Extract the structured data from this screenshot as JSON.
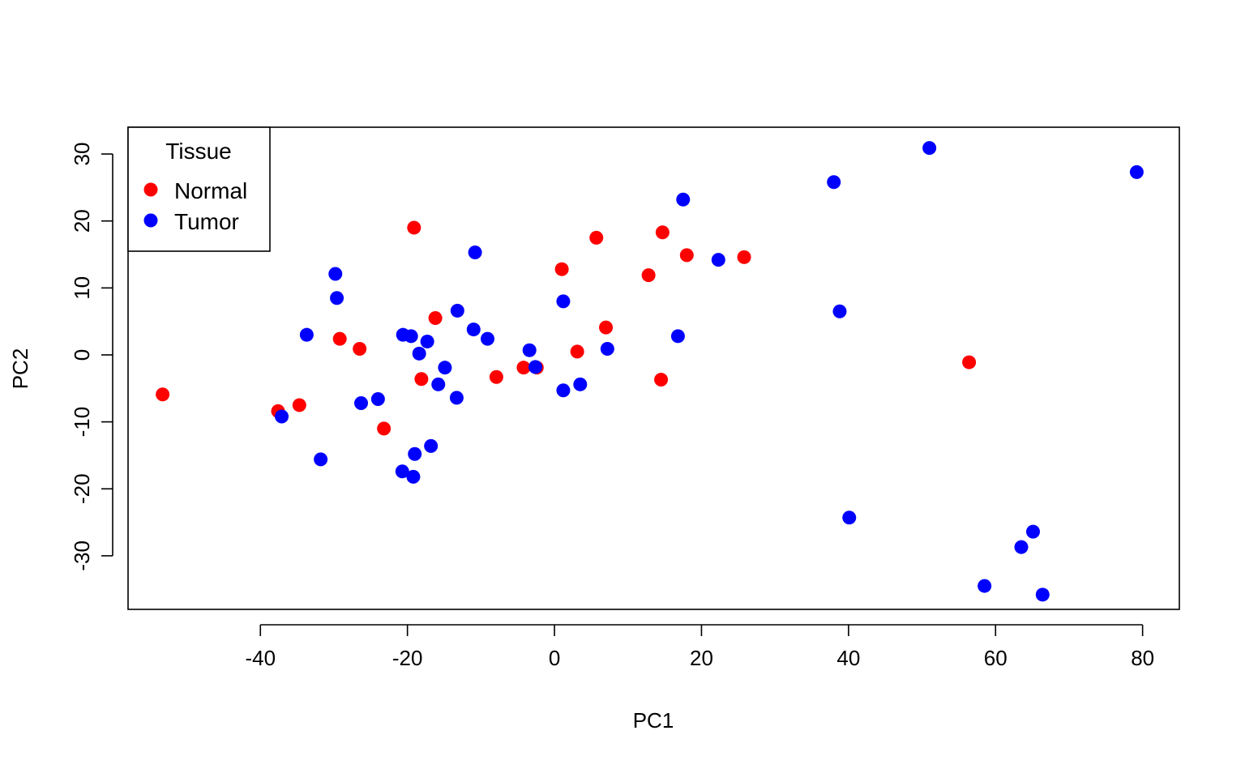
{
  "chart_data": {
    "type": "scatter",
    "title": "",
    "xlabel": "PC1",
    "ylabel": "PC2",
    "xlim": [
      -58,
      85
    ],
    "ylim": [
      -38,
      34
    ],
    "xticks": [
      -40,
      -20,
      0,
      20,
      40,
      60,
      80
    ],
    "yticks": [
      -30,
      -20,
      -10,
      0,
      10,
      20,
      30
    ],
    "grid": false,
    "legend": {
      "title": "Tissue",
      "position": "top-left",
      "entries": [
        {
          "label": "Normal",
          "color": "#ff0000"
        },
        {
          "label": "Tumor",
          "color": "#0000ff"
        }
      ]
    },
    "series": [
      {
        "name": "Normal",
        "color": "#ff0000",
        "points": [
          [
            -53.3,
            -5.9
          ],
          [
            -37.6,
            -8.4
          ],
          [
            -34.7,
            -7.5
          ],
          [
            -29.2,
            2.4
          ],
          [
            -26.5,
            0.9
          ],
          [
            -23.2,
            -11.0
          ],
          [
            -19.1,
            19.0
          ],
          [
            -18.1,
            -3.6
          ],
          [
            -16.2,
            5.5
          ],
          [
            -7.9,
            -3.3
          ],
          [
            -4.2,
            -1.9
          ],
          [
            -2.4,
            -1.9
          ],
          [
            1.0,
            12.8
          ],
          [
            3.1,
            0.5
          ],
          [
            5.7,
            17.5
          ],
          [
            7.0,
            4.1
          ],
          [
            12.8,
            11.9
          ],
          [
            14.5,
            -3.7
          ],
          [
            14.7,
            18.3
          ],
          [
            18.0,
            14.9
          ],
          [
            25.8,
            14.6
          ],
          [
            56.4,
            -1.1
          ]
        ]
      },
      {
        "name": "Tumor",
        "color": "#0000ff",
        "points": [
          [
            -37.1,
            -9.2
          ],
          [
            -33.7,
            3.0
          ],
          [
            -31.8,
            -15.6
          ],
          [
            -29.8,
            12.1
          ],
          [
            -29.6,
            8.5
          ],
          [
            -26.3,
            -7.2
          ],
          [
            -24.0,
            -6.6
          ],
          [
            -20.7,
            -17.4
          ],
          [
            -20.6,
            3.0
          ],
          [
            -19.5,
            2.8
          ],
          [
            -19.2,
            -18.2
          ],
          [
            -19.0,
            -14.8
          ],
          [
            -18.4,
            0.2
          ],
          [
            -17.3,
            2.0
          ],
          [
            -16.8,
            -13.6
          ],
          [
            -15.8,
            -4.4
          ],
          [
            -14.9,
            -1.9
          ],
          [
            -13.3,
            -6.4
          ],
          [
            -13.2,
            6.6
          ],
          [
            -11.0,
            3.8
          ],
          [
            -10.8,
            15.3
          ],
          [
            -9.1,
            2.4
          ],
          [
            -3.4,
            0.7
          ],
          [
            -2.6,
            -1.8
          ],
          [
            1.2,
            -5.3
          ],
          [
            1.2,
            8.0
          ],
          [
            3.5,
            -4.4
          ],
          [
            7.2,
            0.9
          ],
          [
            16.8,
            2.8
          ],
          [
            17.5,
            23.2
          ],
          [
            22.3,
            14.2
          ],
          [
            38.0,
            25.8
          ],
          [
            38.8,
            6.5
          ],
          [
            40.1,
            -24.3
          ],
          [
            51.0,
            30.9
          ],
          [
            58.5,
            -34.5
          ],
          [
            63.5,
            -28.7
          ],
          [
            65.1,
            -26.4
          ],
          [
            66.4,
            -35.8
          ],
          [
            79.2,
            27.3
          ]
        ]
      }
    ]
  }
}
